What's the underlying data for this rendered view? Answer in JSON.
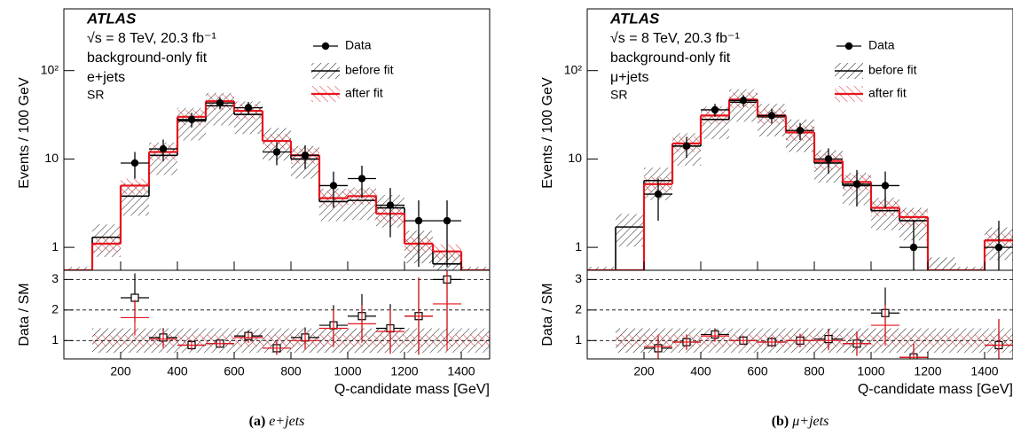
{
  "chart_data": [
    {
      "type": "histogram",
      "annotations": [
        "ATLAS",
        "√s = 8 TeV, 20.3 fb⁻¹",
        "background-only fit",
        "e+jets",
        "SR"
      ],
      "ylabel": "Events / 100 GeV",
      "xlabel": "Q-candidate mass [GeV]",
      "ratio_ylabel": "Data / SM",
      "caption_label": "(a)",
      "caption": "e+jets",
      "bins": [
        0,
        100,
        200,
        300,
        400,
        500,
        600,
        700,
        800,
        900,
        1000,
        1100,
        1200,
        1300,
        1400,
        1500
      ],
      "xlim": [
        0,
        1500
      ],
      "xticks": [
        200,
        400,
        600,
        800,
        1000,
        1200,
        1400
      ],
      "log_y": true,
      "ylim": [
        0.55,
        500
      ],
      "yticks": [
        1,
        10,
        {
          "value": 100,
          "label": "10²"
        }
      ],
      "legend": "upper right",
      "series": [
        {
          "name": "before fit",
          "color": "#000000",
          "uncertainty": 0.4,
          "values": [
            0.43,
            1.3,
            3.8,
            11,
            27,
            40,
            32,
            16,
            10,
            3.3,
            3.4,
            2.8,
            1.1,
            0.65,
            0.43
          ]
        },
        {
          "name": "after fit",
          "color": "#e8141c",
          "uncertainty": 0.2,
          "values": [
            0.43,
            1.1,
            5,
            12,
            30,
            45,
            35,
            16,
            11,
            3.6,
            3.8,
            2.4,
            1.1,
            0.9,
            0.43
          ]
        }
      ],
      "data": {
        "name": "Data",
        "color": "#000000",
        "x": [
          250,
          350,
          450,
          550,
          650,
          750,
          850,
          950,
          1050,
          1150,
          1250,
          1350,
          1450
        ],
        "values": [
          9,
          13,
          28,
          43,
          38,
          12,
          11,
          5,
          6,
          3,
          2,
          2,
          null
        ],
        "errors": [
          3,
          3.6,
          5.3,
          6.6,
          6.2,
          3.5,
          3.3,
          2.2,
          2.4,
          1.7,
          1.4,
          1.4,
          null
        ]
      },
      "ratio": {
        "ylim": [
          0.4,
          3.3
        ],
        "yticks": [
          1,
          2,
          3
        ],
        "grid": true,
        "series": [
          {
            "color": "#000000",
            "uncertainty": 0.4,
            "values": [
              2.4,
              1.1,
              0.85,
              0.9,
              1.15,
              0.75,
              1.1,
              1.5,
              1.8,
              1.4,
              1.8,
              3.0,
              null
            ]
          },
          {
            "color": "#e8141c",
            "uncertainty": 0.2,
            "values": [
              1.75,
              1.05,
              0.85,
              0.9,
              1.1,
              0.75,
              1.0,
              1.4,
              1.55,
              1.3,
              1.8,
              2.2,
              null
            ]
          }
        ]
      }
    },
    {
      "type": "histogram",
      "annotations": [
        "ATLAS",
        "√s = 8 TeV, 20.3 fb⁻¹",
        "background-only fit",
        "μ+jets",
        "SR"
      ],
      "ylabel": "Events / 100 GeV",
      "xlabel": "Q-candidate mass [GeV]",
      "ratio_ylabel": "Data / SM",
      "caption_label": "(b)",
      "caption": "μ+jets",
      "bins": [
        0,
        100,
        200,
        300,
        400,
        500,
        600,
        700,
        800,
        900,
        1000,
        1100,
        1200,
        1300,
        1400,
        1500
      ],
      "xlim": [
        0,
        1500
      ],
      "xticks": [
        200,
        400,
        600,
        800,
        1000,
        1200,
        1400
      ],
      "log_y": true,
      "ylim": [
        0.55,
        500
      ],
      "yticks": [
        1,
        10,
        {
          "value": 100,
          "label": "10²"
        }
      ],
      "legend": "upper right",
      "series": [
        {
          "name": "before fit",
          "color": "#000000",
          "uncertainty": 0.4,
          "values": [
            0.43,
            1.7,
            5.7,
            14,
            28,
            44,
            30,
            20,
            9,
            5,
            2.6,
            2,
            0.55,
            0.43,
            1.2
          ]
        },
        {
          "name": "after fit",
          "color": "#e8141c",
          "uncertainty": 0.2,
          "values": [
            0.43,
            0.43,
            5.2,
            15,
            31,
            47,
            31,
            20,
            9.5,
            5.5,
            2.8,
            2.2,
            0.43,
            0.43,
            1.2
          ]
        }
      ],
      "data": {
        "name": "Data",
        "color": "#000000",
        "x": [
          250,
          350,
          450,
          550,
          650,
          750,
          850,
          950,
          1050,
          1150,
          1250,
          1350,
          1450
        ],
        "values": [
          4,
          14,
          36,
          46,
          31,
          21,
          10,
          5.2,
          5,
          1,
          null,
          null,
          1
        ],
        "errors": [
          2,
          3.7,
          6,
          6.8,
          5.6,
          4.6,
          3.2,
          2.3,
          2.2,
          1,
          null,
          null,
          1
        ]
      },
      "ratio": {
        "ylim": [
          0.4,
          3.3
        ],
        "yticks": [
          1,
          2,
          3
        ],
        "grid": true,
        "series": [
          {
            "color": "#000000",
            "uncertainty": 0.4,
            "values": [
              0.75,
              0.95,
              1.2,
              1.0,
              0.95,
              1.0,
              1.05,
              0.9,
              1.9,
              0.45,
              null,
              null,
              0.85
            ]
          },
          {
            "color": "#e8141c",
            "uncertainty": 0.2,
            "values": [
              0.8,
              0.95,
              1.15,
              1.0,
              0.95,
              1.0,
              1.0,
              0.9,
              1.5,
              0.45,
              null,
              null,
              0.85
            ]
          }
        ]
      }
    }
  ]
}
